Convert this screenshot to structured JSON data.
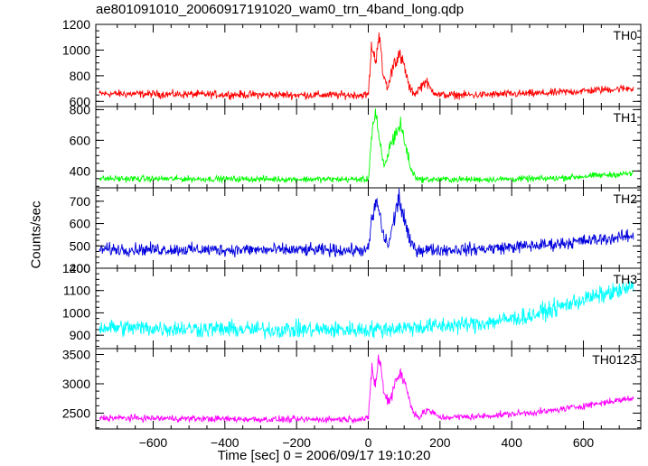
{
  "header": {
    "title": "ae801091010_20060917191020_wam0_trn_4band_long.qdp",
    "xlabel": "Time [sec] 0 = 2006/09/17 19:10:20",
    "ylabel": "Counts/sec"
  },
  "chart_data": [
    {
      "type": "line",
      "name": "TH0",
      "color": "#ff0000",
      "xlim": [
        -760,
        760
      ],
      "ylim": [
        560,
        1200
      ],
      "yticks": [
        600,
        800,
        1000,
        1200
      ],
      "baseline": {
        "x": [
          -750,
          -200,
          0,
          300,
          500,
          740
        ],
        "y": [
          660,
          650,
          650,
          650,
          665,
          705
        ]
      },
      "noise": 30,
      "burst": {
        "x": [
          0,
          10,
          20,
          30,
          40,
          55,
          70,
          85,
          100,
          115,
          130,
          160,
          175,
          200
        ],
        "y": [
          650,
          1050,
          900,
          1150,
          820,
          700,
          900,
          960,
          880,
          700,
          660,
          760,
          690,
          650
        ]
      },
      "xticks": [
        -600,
        -400,
        -200,
        0,
        200,
        400,
        600
      ]
    },
    {
      "type": "line",
      "name": "TH1",
      "color": "#00ff00",
      "xlim": [
        -760,
        760
      ],
      "ylim": [
        290,
        820
      ],
      "yticks": [
        400,
        600,
        800
      ],
      "baseline": {
        "x": [
          -750,
          0,
          300,
          500,
          740
        ],
        "y": [
          350,
          345,
          345,
          350,
          385
        ]
      },
      "noise": 20,
      "burst": {
        "x": [
          0,
          10,
          20,
          30,
          45,
          60,
          75,
          90,
          105,
          120,
          140
        ],
        "y": [
          345,
          650,
          780,
          600,
          420,
          560,
          640,
          700,
          560,
          400,
          345
        ]
      },
      "xticks": [
        -600,
        -400,
        -200,
        0,
        200,
        400,
        600
      ]
    },
    {
      "type": "line",
      "name": "TH2",
      "color": "#0000dd",
      "xlim": [
        -760,
        760
      ],
      "ylim": [
        400,
        760
      ],
      "yticks": [
        400,
        500,
        600,
        700
      ],
      "baseline": {
        "x": [
          -750,
          0,
          300,
          500,
          740
        ],
        "y": [
          485,
          480,
          485,
          505,
          545
        ]
      },
      "noise": 28,
      "burst": {
        "x": [
          0,
          10,
          25,
          40,
          55,
          70,
          85,
          100,
          115,
          135
        ],
        "y": [
          480,
          620,
          700,
          560,
          500,
          600,
          720,
          620,
          520,
          480
        ]
      },
      "xticks": [
        -600,
        -400,
        -200,
        0,
        200,
        400,
        600
      ]
    },
    {
      "type": "line",
      "name": "TH3",
      "color": "#00ffff",
      "xlim": [
        -760,
        760
      ],
      "ylim": [
        840,
        1200
      ],
      "yticks": [
        900,
        1000,
        1100,
        1200
      ],
      "baseline": {
        "x": [
          -750,
          -300,
          0,
          300,
          450,
          600,
          740
        ],
        "y": [
          935,
          925,
          925,
          950,
          985,
          1060,
          1115
        ]
      },
      "noise": 38,
      "burst": {
        "x": [
          0,
          200
        ],
        "y": [
          925,
          925
        ]
      },
      "xticks": [
        -600,
        -400,
        -200,
        0,
        200,
        400,
        600
      ]
    },
    {
      "type": "line",
      "name": "TH0123",
      "color": "#ff00ff",
      "xlim": [
        -760,
        760
      ],
      "ylim": [
        2230,
        3600
      ],
      "yticks": [
        2500,
        3000,
        3500
      ],
      "baseline": {
        "x": [
          -750,
          -200,
          0,
          300,
          500,
          740
        ],
        "y": [
          2420,
          2390,
          2400,
          2440,
          2530,
          2760
        ]
      },
      "noise": 55,
      "burst": {
        "x": [
          0,
          10,
          20,
          30,
          45,
          60,
          75,
          90,
          105,
          120,
          140,
          165,
          200
        ],
        "y": [
          2400,
          3300,
          2950,
          3500,
          2800,
          2700,
          3050,
          3200,
          2950,
          2600,
          2420,
          2560,
          2420
        ]
      },
      "xticks": [
        -600,
        -400,
        -200,
        0,
        200,
        400,
        600
      ]
    }
  ]
}
